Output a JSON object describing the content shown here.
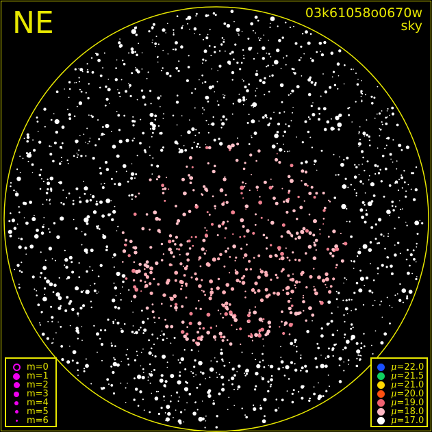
{
  "direction_label": "NE",
  "frame_id": "03k61058o0670w",
  "image_type": "sky",
  "colors": {
    "frame": "#e8e800",
    "magnitude_legend": "#ee00ee",
    "background": "#000000"
  },
  "magnitude_legend": [
    {
      "label": "m=0",
      "symbol": "ring"
    },
    {
      "label": "m=1",
      "symbol": "dot"
    },
    {
      "label": "m=2",
      "symbol": "dot"
    },
    {
      "label": "m=3",
      "symbol": "dot"
    },
    {
      "label": "m=4",
      "symbol": "dot"
    },
    {
      "label": "m=5",
      "symbol": "dot"
    },
    {
      "label": "m=6",
      "symbol": "dot"
    }
  ],
  "brightness_legend": [
    {
      "symbol": "μ",
      "value": "=22.0",
      "color": "#1a4fff"
    },
    {
      "symbol": "μ",
      "value": "=21.5",
      "color": "#10d060"
    },
    {
      "symbol": "μ",
      "value": "=21.0",
      "color": "#ffd800"
    },
    {
      "symbol": "μ",
      "value": "=20.0",
      "color": "#ff5010"
    },
    {
      "symbol": "μ",
      "value": "=19.0",
      "color": "#f06070"
    },
    {
      "symbol": "μ",
      "value": "=18.0",
      "color": "#ffb8c4"
    },
    {
      "symbol": "μ",
      "value": "=17.0",
      "color": "#ffffff"
    }
  ]
}
